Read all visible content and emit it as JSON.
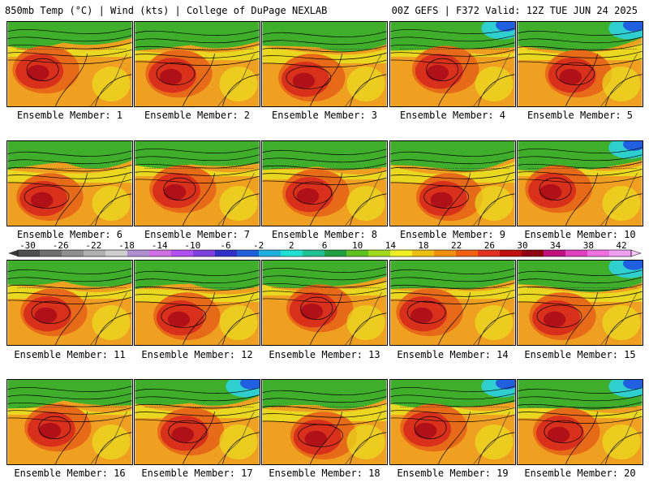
{
  "header": {
    "left": "850mb Temp (°C) | Wind (kts) | College of DuPage NEXLAB",
    "right": "00Z GEFS | F372 Valid: 12Z TUE JUN 24 2025"
  },
  "panels": [
    {
      "label": "Ensemble Member: 1"
    },
    {
      "label": "Ensemble Member: 2"
    },
    {
      "label": "Ensemble Member: 3"
    },
    {
      "label": "Ensemble Member: 4"
    },
    {
      "label": "Ensemble Member: 5"
    },
    {
      "label": "Ensemble Member: 6"
    },
    {
      "label": "Ensemble Member: 7"
    },
    {
      "label": "Ensemble Member: 8"
    },
    {
      "label": "Ensemble Member: 9"
    },
    {
      "label": "Ensemble Member: 10"
    },
    {
      "label": "Ensemble Member: 11"
    },
    {
      "label": "Ensemble Member: 12"
    },
    {
      "label": "Ensemble Member: 13"
    },
    {
      "label": "Ensemble Member: 14"
    },
    {
      "label": "Ensemble Member: 15"
    },
    {
      "label": "Ensemble Member: 16"
    },
    {
      "label": "Ensemble Member: 17"
    },
    {
      "label": "Ensemble Member: 18"
    },
    {
      "label": "Ensemble Member: 19"
    },
    {
      "label": "Ensemble Member: 20"
    }
  ],
  "colorbar": {
    "labels": [
      "-30",
      "-26",
      "-22",
      "-18",
      "-14",
      "-10",
      "-6",
      "-2",
      "2",
      "6",
      "10",
      "14",
      "18",
      "22",
      "26",
      "30",
      "34",
      "38",
      "42"
    ],
    "colors": [
      "#4f4f4f",
      "#6f6f6f",
      "#8f8f8f",
      "#afafaf",
      "#cfcfcf",
      "#b08fd0",
      "#d070e0",
      "#b050f0",
      "#8040e0",
      "#3030c8",
      "#2060e0",
      "#20b0e0",
      "#20e0d0",
      "#20c090",
      "#20a040",
      "#60c020",
      "#a0d820",
      "#f0f020",
      "#f0c010",
      "#f09010",
      "#f06010",
      "#e03020",
      "#c01010",
      "#900010",
      "#c01080",
      "#e040c0",
      "#f070e0",
      "#f0a0f0"
    ]
  },
  "palette": {
    "green": "#3fae2a",
    "lime": "#9ccf1d",
    "yellow": "#e9e020",
    "orange": "#f0a020",
    "darkorange": "#e76a18",
    "red": "#d9301c",
    "darkred": "#b01018",
    "cyan": "#2fcfd0",
    "blue": "#2060e0"
  }
}
